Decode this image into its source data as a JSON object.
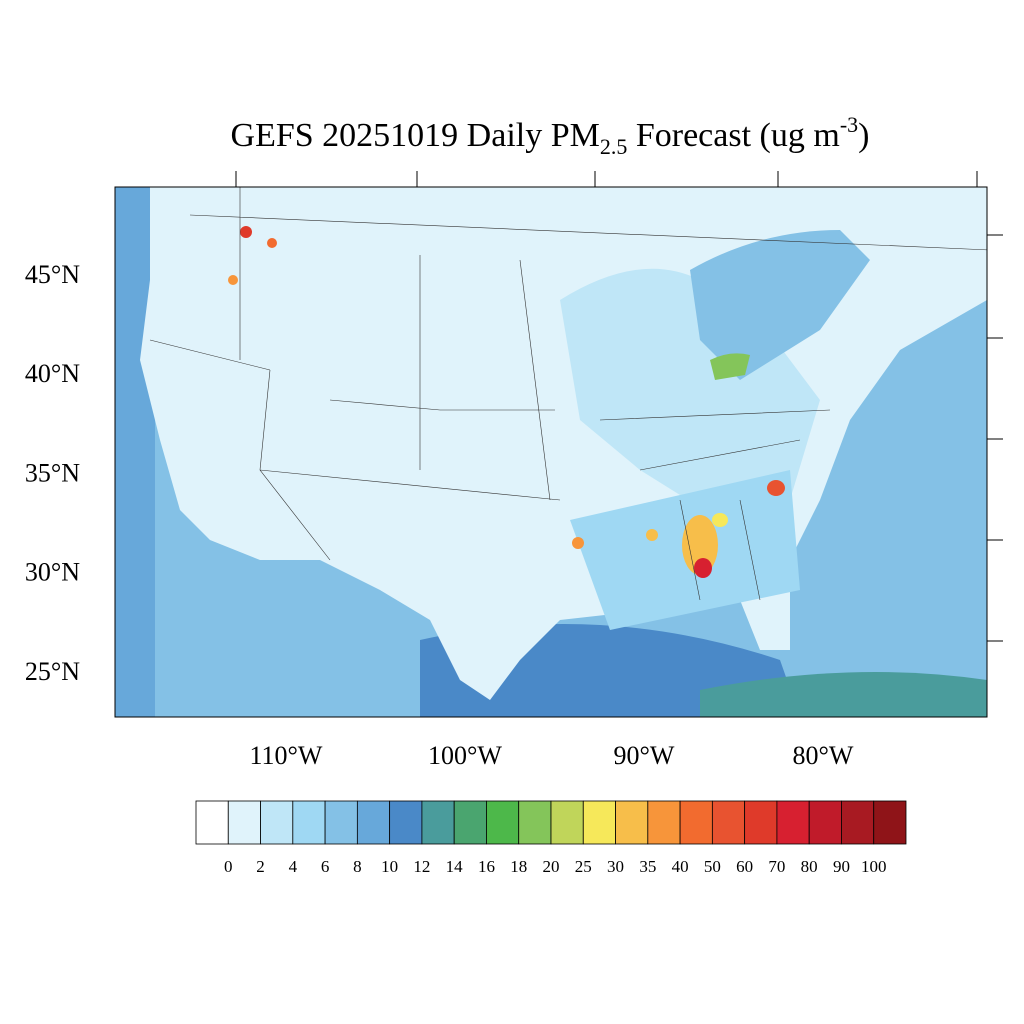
{
  "title": {
    "main": "GEFS 20251019 Daily PM",
    "sub": "2.5",
    "rest": " Forecast (ug m",
    "sup": "-3",
    "end": ")"
  },
  "lat_labels": [
    "45°N",
    "40°N",
    "35°N",
    "30°N",
    "25°N"
  ],
  "lon_labels": [
    "110°W",
    "100°W",
    "90°W",
    "80°W"
  ],
  "colorbar": {
    "colors": [
      "#ffffff",
      "#e0f3fb",
      "#bfe6f7",
      "#9fd8f3",
      "#84c1e6",
      "#67a8da",
      "#4a89c8",
      "#4a9c9c",
      "#4aa56f",
      "#4db84a",
      "#84c55a",
      "#c0d55a",
      "#f6e85a",
      "#f7be4a",
      "#f7953a",
      "#f26b2f",
      "#e85330",
      "#df3a2a",
      "#d72030",
      "#c01b2a",
      "#a81a22",
      "#8f1418"
    ],
    "labels": [
      0,
      2,
      4,
      6,
      8,
      10,
      12,
      14,
      16,
      18,
      20,
      25,
      30,
      35,
      40,
      50,
      60,
      70,
      80,
      90,
      100
    ]
  }
}
